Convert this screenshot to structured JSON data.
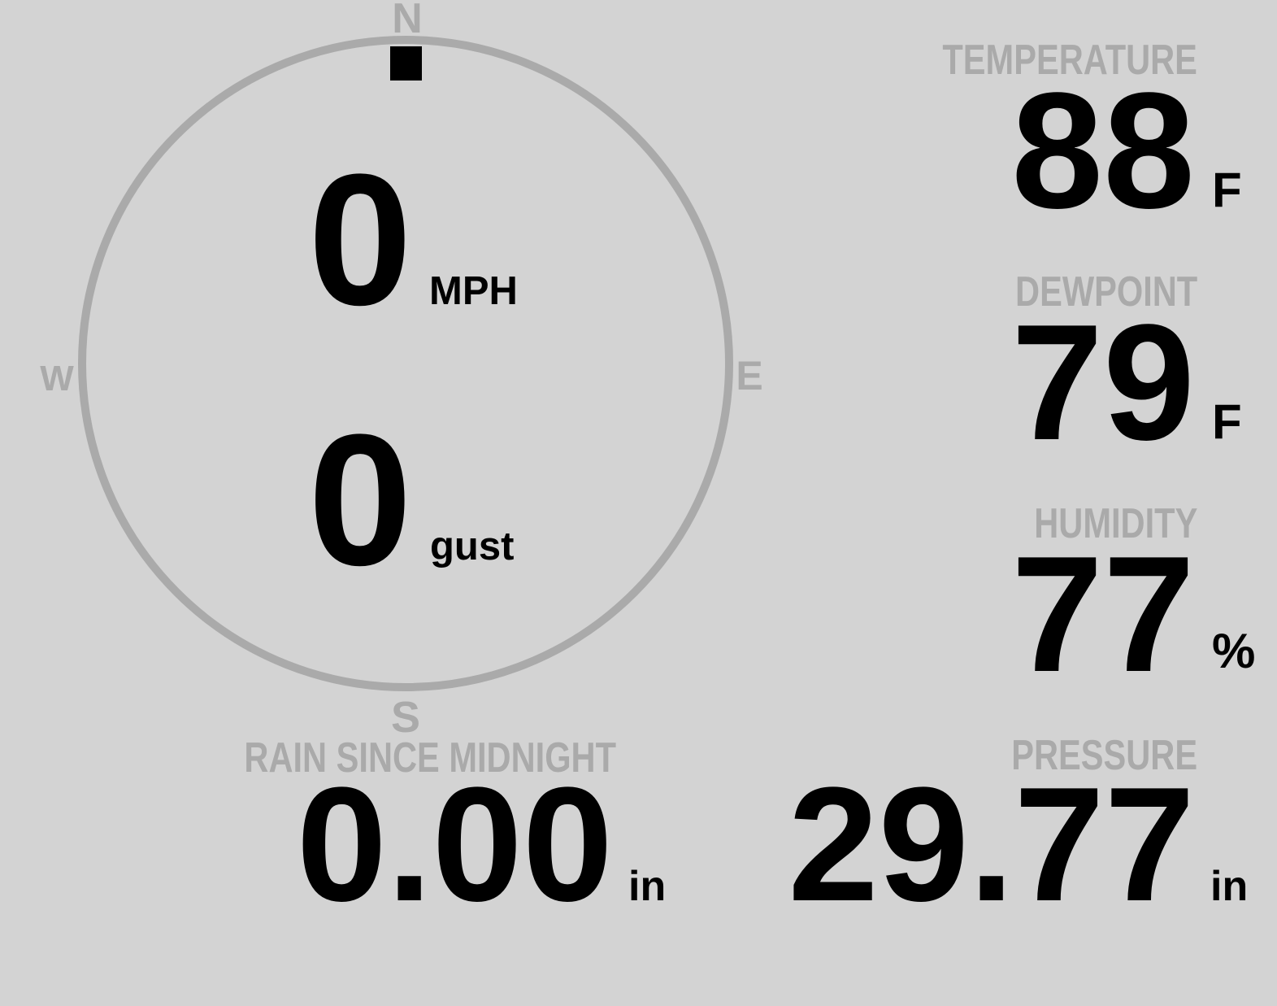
{
  "colors": {
    "background": "#d3d3d3",
    "label": "#aaaaaa",
    "value": "#000000",
    "compass_ring": "#aaaaaa"
  },
  "wind": {
    "compass": {
      "north": "N",
      "east": "E",
      "south": "S",
      "west": "W"
    },
    "direction_deg": 0,
    "speed": "0",
    "speed_unit": "MPH",
    "gust": "0",
    "gust_unit": "gust"
  },
  "temperature": {
    "label": "TEMPERATURE",
    "value": "88",
    "unit": "F"
  },
  "dewpoint": {
    "label": "DEWPOINT",
    "value": "79",
    "unit": "F"
  },
  "humidity": {
    "label": "HUMIDITY",
    "value": "77",
    "unit": "%"
  },
  "pressure": {
    "label": "PRESSURE",
    "value": "29.77",
    "unit": "in"
  },
  "rain": {
    "label": "RAIN SINCE MIDNIGHT",
    "value": "0.00",
    "unit": "in"
  }
}
